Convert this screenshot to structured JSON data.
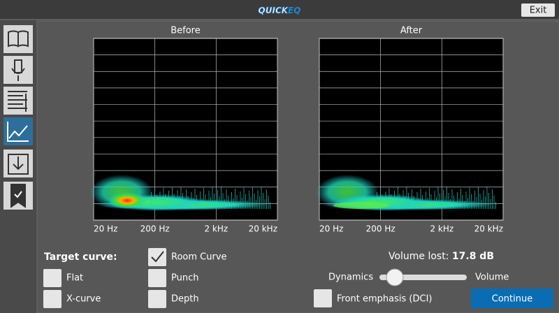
{
  "header": {
    "logo_main": "QUICK",
    "logo_accent": "EQ",
    "exit_button": "Exit"
  },
  "panels": [
    {
      "title": "Before",
      "x_labels": [
        "20 Hz",
        "200 Hz",
        "2 kHz",
        "20 kHz"
      ]
    },
    {
      "title": "After",
      "x_labels": [
        "20 Hz",
        "200 Hz",
        "2 kHz",
        "20 kHz"
      ]
    }
  ],
  "target_curve": {
    "label": "Target curve:",
    "options": [
      {
        "label": "Flat",
        "checked": false
      },
      {
        "label": "X-curve",
        "checked": false
      },
      {
        "label": "Room Curve",
        "checked": true
      },
      {
        "label": "Punch",
        "checked": false
      },
      {
        "label": "Depth",
        "checked": false
      }
    ]
  },
  "volume_lost": {
    "label": "Volume lost:",
    "value": "17.8 dB"
  },
  "slider": {
    "left_label": "Dynamics",
    "right_label": "Volume"
  },
  "front_emphasis": {
    "label": "Front emphasis (DCI)",
    "checked": false
  },
  "continue_button": "Continue"
}
